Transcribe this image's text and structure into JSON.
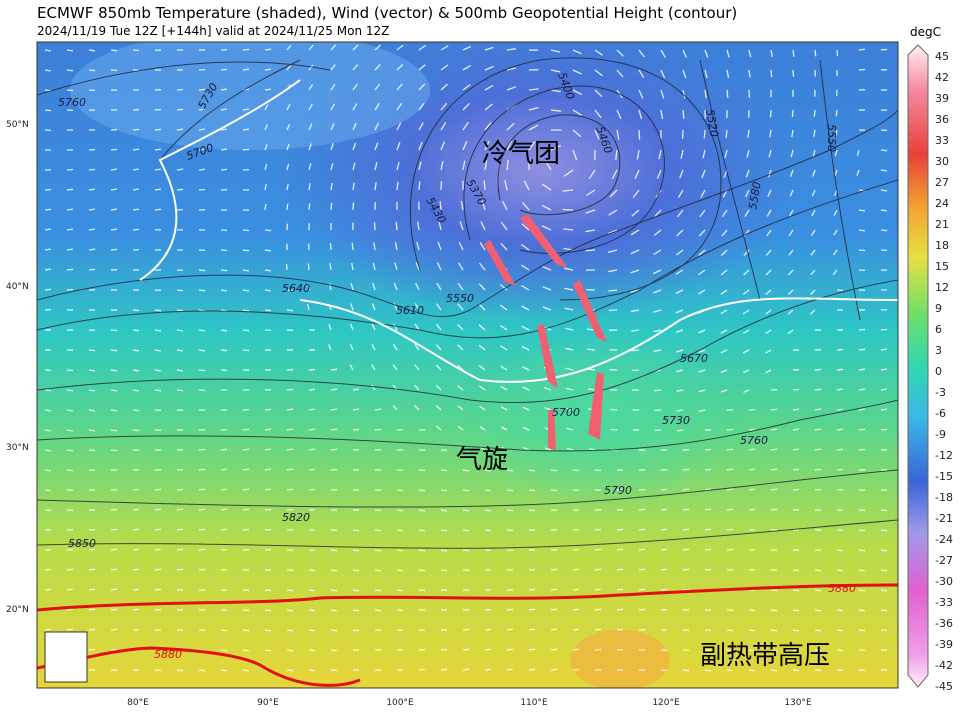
{
  "header": {
    "title": "ECMWF 850mb Temperature (shaded), Wind (vector) & 500mb Geopotential Height (contour)",
    "subtitle": "2024/11/19 Tue 12Z [+144h] valid at 2024/11/25 Mon 12Z"
  },
  "colorbar": {
    "unit": "degC",
    "ticks": [
      "45",
      "42",
      "39",
      "36",
      "33",
      "30",
      "27",
      "24",
      "21",
      "18",
      "15",
      "12",
      "9",
      "6",
      "3",
      "0",
      "-3",
      "-6",
      "-9",
      "-12",
      "-15",
      "-18",
      "-21",
      "-24",
      "-27",
      "-30",
      "-33",
      "-36",
      "-39",
      "-42",
      "-45"
    ]
  },
  "latitude_labels": [
    "50°N",
    "40°N",
    "30°N",
    "20°N"
  ],
  "longitude_labels": [
    "80°E",
    "90°E",
    "100°E",
    "110°E",
    "120°E",
    "130°E"
  ],
  "contour_labels": [
    "5760",
    "5730",
    "5700",
    "5640",
    "5610",
    "5550",
    "5430",
    "5370",
    "5400",
    "5460",
    "5520",
    "5550",
    "5580",
    "5670",
    "5700",
    "5730",
    "5760",
    "5790",
    "5820",
    "5850",
    "5880",
    "5880"
  ],
  "annotations": [
    "冷气团",
    "气旋",
    "副热带高压"
  ]
}
